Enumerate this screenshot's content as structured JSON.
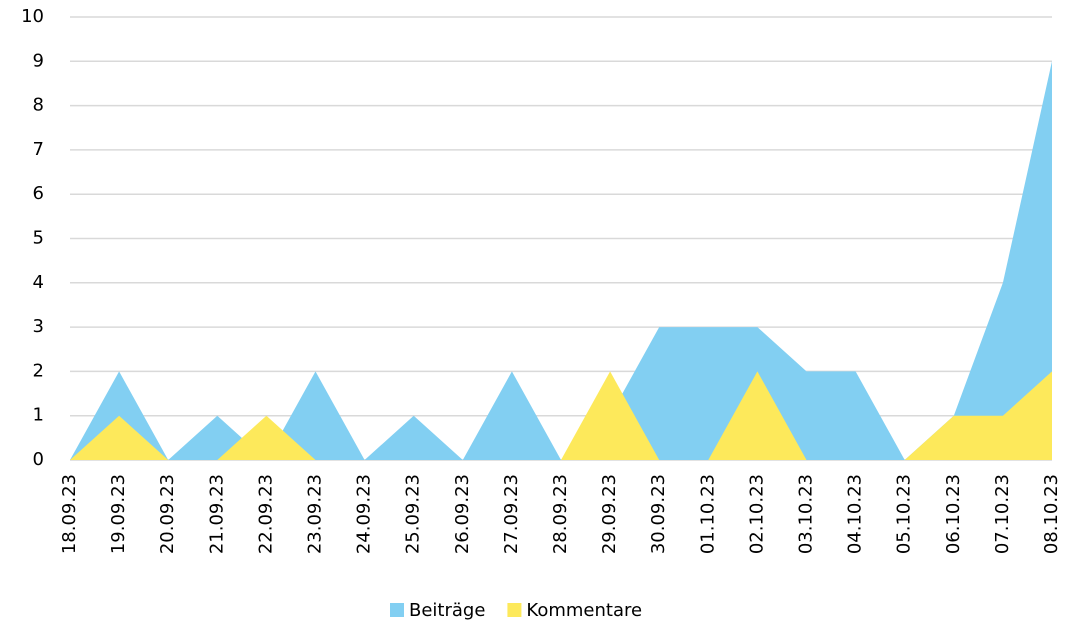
{
  "chart_data": {
    "type": "area",
    "categories": [
      "18.09.23",
      "19.09.23",
      "20.09.23",
      "21.09.23",
      "22.09.23",
      "23.09.23",
      "24.09.23",
      "25.09.23",
      "26.09.23",
      "27.09.23",
      "28.09.23",
      "29.09.23",
      "30.09.23",
      "01.10.23",
      "02.10.23",
      "03.10.23",
      "04.10.23",
      "05.10.23",
      "06.10.23",
      "07.10.23",
      "08.10.23"
    ],
    "series": [
      {
        "name": "Beiträge",
        "color": "#82cff2",
        "values": [
          0,
          2,
          0,
          1,
          0,
          2,
          0,
          1,
          0,
          2,
          0,
          1,
          3,
          3,
          3,
          2,
          2,
          0,
          1,
          4,
          9
        ]
      },
      {
        "name": "Kommentare",
        "color": "#fde95b",
        "values": [
          0,
          1,
          0,
          0,
          1,
          0,
          0,
          0,
          0,
          0,
          0,
          2,
          0,
          0,
          2,
          0,
          0,
          0,
          1,
          1,
          2
        ]
      }
    ],
    "ylim": [
      0,
      10
    ],
    "yticks": [
      0,
      1,
      2,
      3,
      4,
      5,
      6,
      7,
      8,
      9,
      10
    ],
    "grid": true,
    "legend": "bottom"
  }
}
